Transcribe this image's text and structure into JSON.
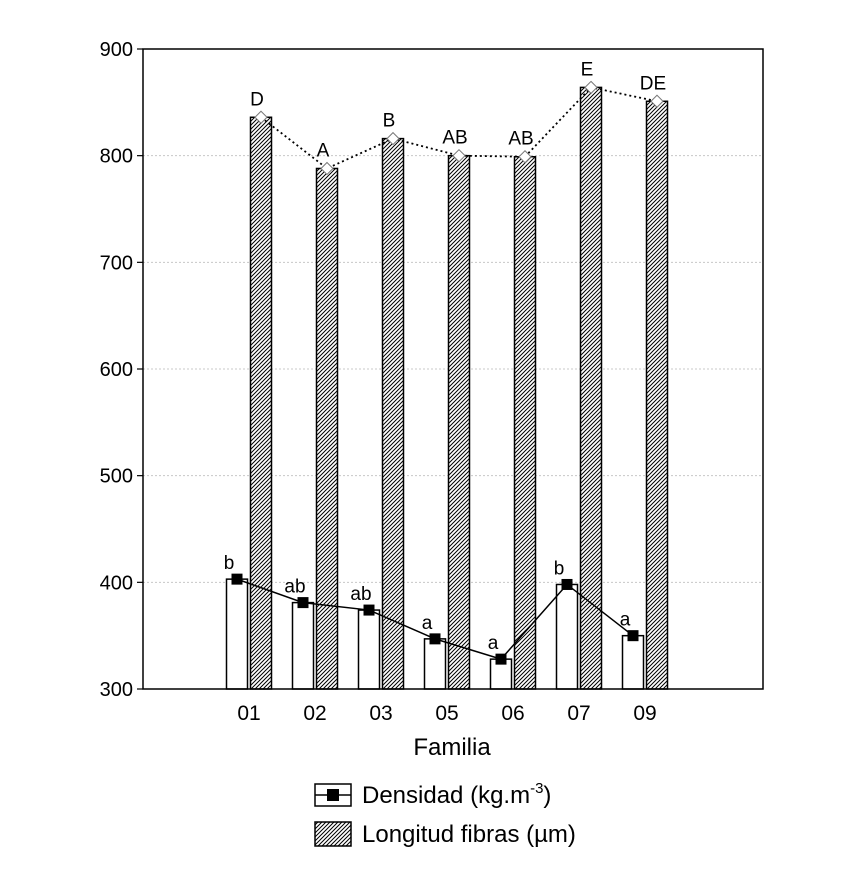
{
  "colors": {
    "axis": "#000000",
    "grid": "#c8c8c8",
    "bar_densidad_fill": "#ffffff",
    "bar_longitud_pattern": "#000000",
    "line": "#000000",
    "marker_densidad": "#000000",
    "marker_longitud": "#ffffff"
  },
  "chart_data": {
    "type": "bar",
    "xlabel": "Familia",
    "ylabel": "",
    "ylim": [
      300,
      900
    ],
    "yticks": [
      300,
      400,
      500,
      600,
      700,
      800,
      900
    ],
    "grid": true,
    "legend_placement": "bottom",
    "categories": [
      "01",
      "02",
      "03",
      "05",
      "06",
      "07",
      "09"
    ],
    "series": [
      {
        "name": "Densidad (kg.m-3)",
        "style": "white-bar-with-solid-line",
        "marker": "filled-square",
        "values": [
          403,
          381,
          374,
          347,
          328,
          398,
          350
        ],
        "letters": [
          "b",
          "ab",
          "ab",
          "a",
          "a",
          "b",
          "a"
        ]
      },
      {
        "name": "Longitud fibras (µm)",
        "style": "hatched-bar-with-dotted-line",
        "marker": "open-diamond",
        "values": [
          836,
          788,
          816,
          800,
          799,
          864,
          851
        ],
        "letters": [
          "D",
          "A",
          "B",
          "AB",
          "AB",
          "E",
          "DE"
        ]
      }
    ]
  }
}
